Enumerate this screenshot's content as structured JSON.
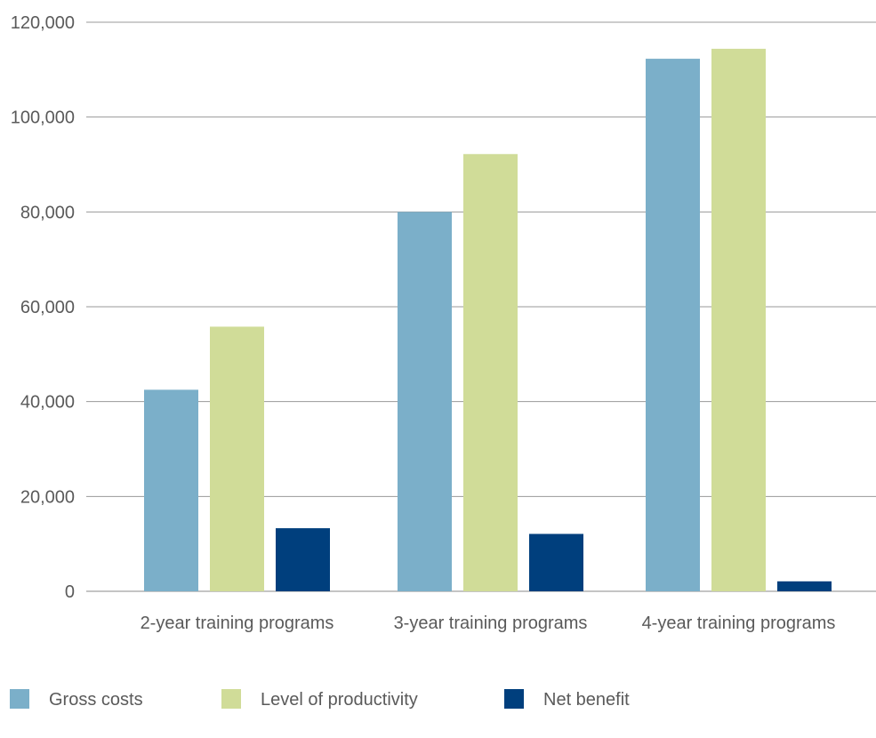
{
  "chart_data": {
    "type": "bar",
    "categories": [
      "2-year training programs",
      "3-year training programs",
      "4-year training programs"
    ],
    "series": [
      {
        "name": "Gross costs",
        "color": "#7bafc9",
        "values": [
          42500,
          80000,
          112300
        ]
      },
      {
        "name": "Level of productivity",
        "color": "#d0dc98",
        "values": [
          55800,
          92200,
          114400
        ]
      },
      {
        "name": "Net benefit",
        "color": "#003f7d",
        "values": [
          13300,
          12100,
          2100
        ]
      }
    ],
    "yticks": [
      "0",
      "20,000",
      "40,000",
      "60,000",
      "80,000",
      "100,000",
      "120,000"
    ],
    "ylim": [
      0,
      120000
    ],
    "grid": true,
    "legend_position": "bottom",
    "title": "",
    "xlabel": "",
    "ylabel": ""
  }
}
